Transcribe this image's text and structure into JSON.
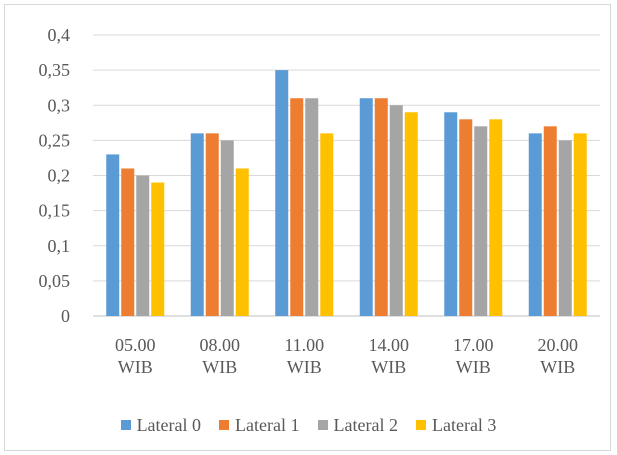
{
  "chart_data": {
    "type": "bar",
    "categories": [
      [
        "05.00",
        "WIB"
      ],
      [
        "08.00",
        "WIB"
      ],
      [
        "11.00",
        "WIB"
      ],
      [
        "14.00",
        "WIB"
      ],
      [
        "17.00",
        "WIB"
      ],
      [
        "20.00",
        "WIB"
      ]
    ],
    "series": [
      {
        "name": "Lateral 0",
        "color": "#5b9bd5",
        "values": [
          0.23,
          0.26,
          0.35,
          0.31,
          0.29,
          0.26
        ]
      },
      {
        "name": "Lateral 1",
        "color": "#ed7d31",
        "values": [
          0.21,
          0.26,
          0.31,
          0.31,
          0.28,
          0.27
        ]
      },
      {
        "name": "Lateral 2",
        "color": "#a5a5a5",
        "values": [
          0.2,
          0.25,
          0.31,
          0.3,
          0.27,
          0.25
        ]
      },
      {
        "name": "Lateral 3",
        "color": "#ffc000",
        "values": [
          0.19,
          0.21,
          0.26,
          0.29,
          0.28,
          0.26
        ]
      }
    ],
    "yticks": [
      "0",
      "0,05",
      "0,1",
      "0,15",
      "0,2",
      "0,25",
      "0,3",
      "0,35",
      "0,4"
    ],
    "ylim": [
      0,
      0.4
    ],
    "ystep": 0.05,
    "title": "",
    "xlabel": "",
    "ylabel": "",
    "grid": true,
    "legend_position": "bottom"
  }
}
